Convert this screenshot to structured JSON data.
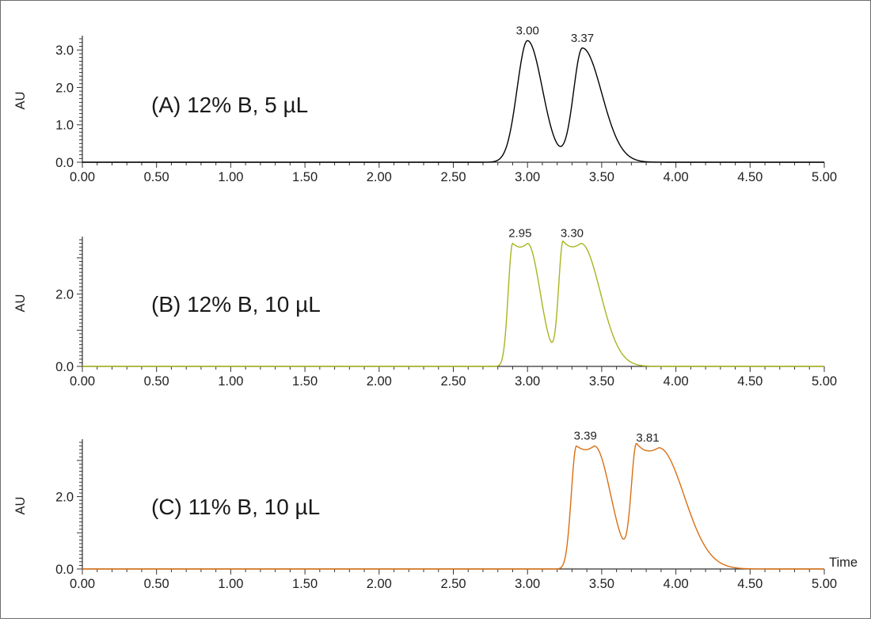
{
  "chart_data": [
    {
      "type": "line",
      "title": "(A) 12% B, 5 µL",
      "ylabel": "AU",
      "xlabel": "",
      "color": "#000000",
      "xlim": [
        0,
        5
      ],
      "ylim": [
        0,
        3.3
      ],
      "x_ticks": [
        "0.00",
        "0.50",
        "1.00",
        "1.50",
        "2.00",
        "2.50",
        "3.00",
        "3.50",
        "4.00",
        "4.50",
        "5.00"
      ],
      "y_ticks": [
        "0.0",
        "1.0",
        "2.0",
        "3.0"
      ],
      "peaks": [
        {
          "rt": 3.0,
          "label": "3.00",
          "height": 3.25,
          "width": 0.07,
          "tail": 0.1,
          "flat": 0.0
        },
        {
          "rt": 3.37,
          "label": "3.37",
          "height": 3.05,
          "width": 0.06,
          "tail": 0.13,
          "flat": 0.0
        }
      ]
    },
    {
      "type": "line",
      "title": "(B) 12% B, 10 µL",
      "ylabel": "AU",
      "xlabel": "",
      "color": "#a8b51e",
      "xlim": [
        0,
        5
      ],
      "ylim": [
        0,
        3.5
      ],
      "x_ticks": [
        "0.00",
        "0.50",
        "1.00",
        "1.50",
        "2.00",
        "2.50",
        "3.00",
        "3.50",
        "4.00",
        "4.50",
        "5.00"
      ],
      "y_ticks": [
        "0.0",
        "2.0"
      ],
      "peaks": [
        {
          "rt": 2.95,
          "label": "2.95",
          "height": 3.4,
          "width": 0.03,
          "tail": 0.085,
          "flat": 0.1
        },
        {
          "rt": 3.3,
          "label": "3.30",
          "height": 3.4,
          "width": 0.03,
          "tail": 0.13,
          "flat": 0.12
        }
      ]
    },
    {
      "type": "line",
      "title": "(C) 11% B, 10 µL",
      "ylabel": "AU",
      "xlabel": "Time",
      "color": "#d96f12",
      "xlim": [
        0,
        5
      ],
      "ylim": [
        0,
        3.5
      ],
      "x_ticks": [
        "0.00",
        "0.50",
        "1.00",
        "1.50",
        "2.00",
        "2.50",
        "3.00",
        "3.50",
        "4.00",
        "4.50",
        "5.00"
      ],
      "y_ticks": [
        "0.0",
        "2.0"
      ],
      "peaks": [
        {
          "rt": 3.39,
          "label": "3.39",
          "height": 3.4,
          "width": 0.035,
          "tail": 0.11,
          "flat": 0.12
        },
        {
          "rt": 3.81,
          "label": "3.81",
          "height": 3.35,
          "width": 0.035,
          "tail": 0.17,
          "flat": 0.15
        }
      ]
    }
  ]
}
